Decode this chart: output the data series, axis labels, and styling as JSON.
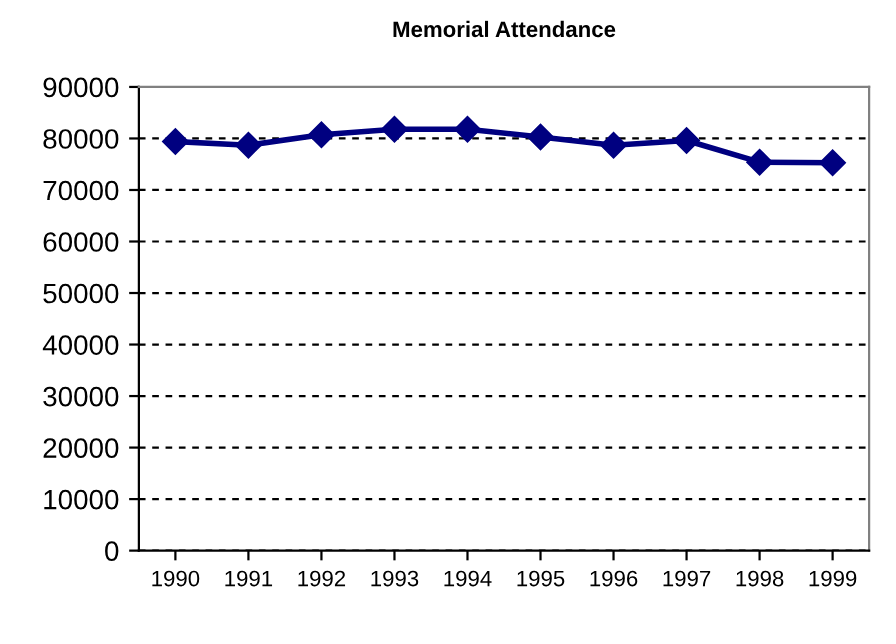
{
  "chart_data": {
    "type": "line",
    "title": "Memorial Attendance",
    "categories": [
      "1990",
      "1991",
      "1992",
      "1993",
      "1994",
      "1995",
      "1996",
      "1997",
      "1998",
      "1999"
    ],
    "series": [
      {
        "color": "#000080",
        "values": [
          79400,
          78700,
          80700,
          81800,
          81800,
          80300,
          78700,
          79600,
          75400,
          75300
        ]
      }
    ],
    "ylim": [
      0,
      90000
    ],
    "yticks": [
      0,
      10000,
      20000,
      30000,
      40000,
      50000,
      60000,
      70000,
      80000,
      90000
    ],
    "grid": "y",
    "marker": "diamond",
    "line_style": "solid",
    "legend": false
  }
}
